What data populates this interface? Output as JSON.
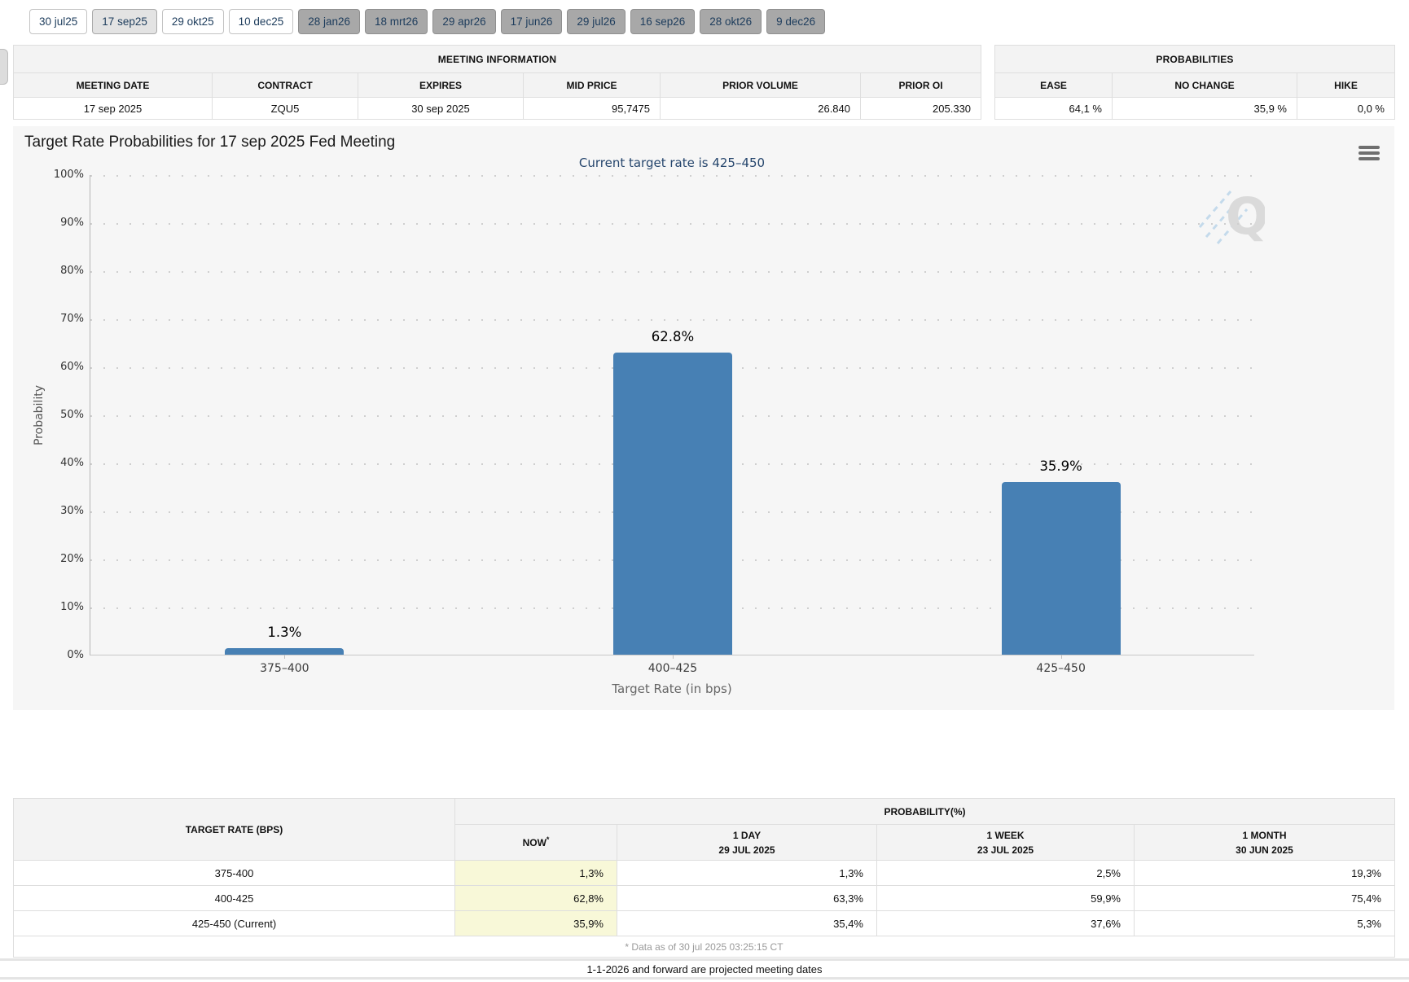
{
  "tabs": [
    {
      "label": "30 jul25",
      "state": "default"
    },
    {
      "label": "17 sep25",
      "state": "selected"
    },
    {
      "label": "29 okt25",
      "state": "default"
    },
    {
      "label": "10 dec25",
      "state": "default"
    },
    {
      "label": "28 jan26",
      "state": "future"
    },
    {
      "label": "18 mrt26",
      "state": "future"
    },
    {
      "label": "29 apr26",
      "state": "future"
    },
    {
      "label": "17 jun26",
      "state": "future"
    },
    {
      "label": "29 jul26",
      "state": "future"
    },
    {
      "label": "16 sep26",
      "state": "future"
    },
    {
      "label": "28 okt26",
      "state": "future"
    },
    {
      "label": "9 dec26",
      "state": "future"
    }
  ],
  "meeting_information": {
    "title": "MEETING INFORMATION",
    "columns": [
      "MEETING DATE",
      "CONTRACT",
      "EXPIRES",
      "MID PRICE",
      "PRIOR VOLUME",
      "PRIOR OI"
    ],
    "row": [
      "17 sep 2025",
      "ZQU5",
      "30 sep 2025",
      "95,7475",
      "26.840",
      "205.330"
    ]
  },
  "probabilities_summary": {
    "title": "PROBABILITIES",
    "columns": [
      "EASE",
      "NO CHANGE",
      "HIKE"
    ],
    "row": [
      "64,1 %",
      "35,9 %",
      "0,0 %"
    ]
  },
  "chart": {
    "title": "Target Rate Probabilities for 17 sep 2025 Fed Meeting",
    "subtitle": "Current target rate is 425–450",
    "ylabel": "Probability",
    "xlabel": "Target Rate (in bps)",
    "menu_icon": "hamburger-icon",
    "watermark_letter": "Q"
  },
  "chart_data": {
    "type": "bar",
    "categories": [
      "375–400",
      "400–425",
      "425–450"
    ],
    "values": [
      1.3,
      62.8,
      35.9
    ],
    "labels": [
      "1.3%",
      "62.8%",
      "35.9%"
    ],
    "title": "Target Rate Probabilities for 17 sep 2025 Fed Meeting",
    "xlabel": "Target Rate (in bps)",
    "ylabel": "Probability",
    "ylim": [
      0,
      100
    ],
    "ytick_step": 10,
    "grid": "dotted-horizontal",
    "legend": "none",
    "bar_color": "#4780B4"
  },
  "probability_table": {
    "corner_header": "TARGET RATE (BPS)",
    "group_header": "PROBABILITY(%)",
    "columns": [
      {
        "label": "NOW",
        "sup": "*",
        "sub": ""
      },
      {
        "label": "1 DAY",
        "sub": "29 JUL 2025"
      },
      {
        "label": "1 WEEK",
        "sub": "23 JUL 2025"
      },
      {
        "label": "1 MONTH",
        "sub": "30 JUN 2025"
      }
    ],
    "rows": [
      {
        "rate": "375-400",
        "values": [
          "1,3%",
          "1,3%",
          "2,5%",
          "19,3%"
        ]
      },
      {
        "rate": "400-425",
        "values": [
          "62,8%",
          "63,3%",
          "59,9%",
          "75,4%"
        ]
      },
      {
        "rate": "425-450 (Current)",
        "values": [
          "35,9%",
          "35,4%",
          "37,6%",
          "5,3%"
        ]
      }
    ],
    "footnote": "* Data as of 30 jul 2025 03:25:15 CT"
  },
  "projection_note": "1-1-2026 and forward are projected meeting dates",
  "colors": {
    "bar": "#4780B4",
    "now_highlight": "#F8F8D8",
    "subtitle_navy": "#26466D",
    "future_tab": "#A8A8A8",
    "selected_tab": "#E3E3E3"
  }
}
